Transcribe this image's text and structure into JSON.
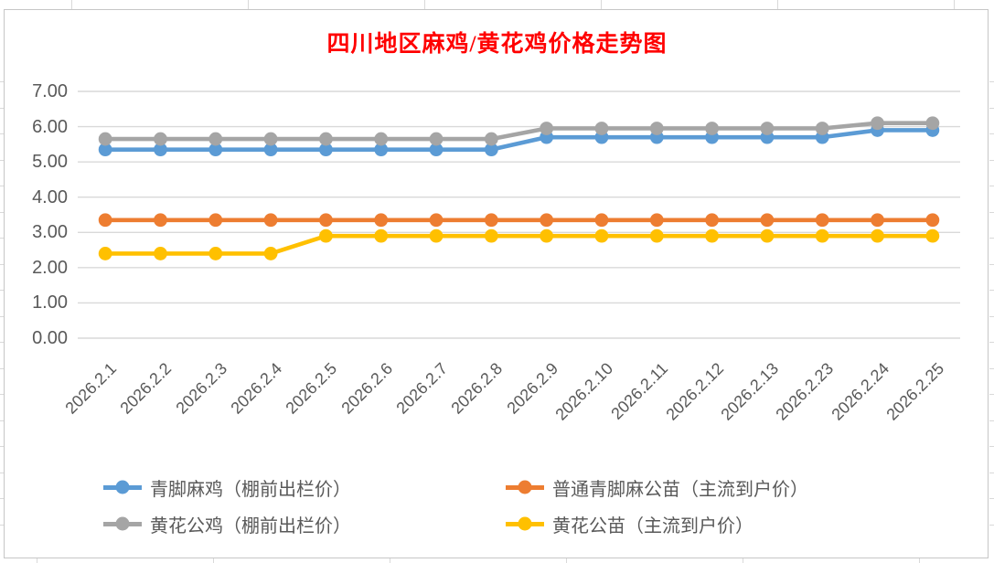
{
  "chart_data": {
    "type": "line",
    "title": "四川地区麻鸡/黄花鸡价格走势图",
    "title_color": "#FF0000",
    "categories": [
      "2026.2.1",
      "2026.2.2",
      "2026.2.3",
      "2026.2.4",
      "2026.2.5",
      "2026.2.6",
      "2026.2.7",
      "2026.2.8",
      "2026.2.9",
      "2026.2.10",
      "2026.2.11",
      "2026.2.12",
      "2026.2.13",
      "2026.2.23",
      "2026.2.24",
      "2026.2.25"
    ],
    "series": [
      {
        "name": "青脚麻鸡（棚前出栏价）",
        "color": "#5B9BD5",
        "values": [
          5.35,
          5.35,
          5.35,
          5.35,
          5.35,
          5.35,
          5.35,
          5.35,
          5.7,
          5.7,
          5.7,
          5.7,
          5.7,
          5.7,
          5.9,
          5.9
        ]
      },
      {
        "name": "普通青脚麻公苗（主流到户价）",
        "color": "#ED7D31",
        "values": [
          3.35,
          3.35,
          3.35,
          3.35,
          3.35,
          3.35,
          3.35,
          3.35,
          3.35,
          3.35,
          3.35,
          3.35,
          3.35,
          3.35,
          3.35,
          3.35
        ]
      },
      {
        "name": "黄花公鸡（棚前出栏价）",
        "color": "#A5A5A5",
        "values": [
          5.65,
          5.65,
          5.65,
          5.65,
          5.65,
          5.65,
          5.65,
          5.65,
          5.95,
          5.95,
          5.95,
          5.95,
          5.95,
          5.95,
          6.1,
          6.1
        ]
      },
      {
        "name": "黄花公苗（主流到户价）",
        "color": "#FFC000",
        "values": [
          2.4,
          2.4,
          2.4,
          2.4,
          2.9,
          2.9,
          2.9,
          2.9,
          2.9,
          2.9,
          2.9,
          2.9,
          2.9,
          2.9,
          2.9,
          2.9
        ]
      }
    ],
    "draw_order": [
      0,
      1,
      2,
      3
    ],
    "ylim": [
      0,
      7
    ],
    "ytick_labels": [
      "0.00",
      "1.00",
      "2.00",
      "3.00",
      "4.00",
      "5.00",
      "6.00",
      "7.00"
    ],
    "xlabel": "",
    "ylabel": "",
    "grid": true,
    "legend_position": "bottom",
    "legend_rows": [
      [
        0,
        1
      ],
      [
        2,
        3
      ]
    ],
    "colors": {
      "gridline": "#D9D9D9",
      "axis_text": "#595959",
      "chart_border": "#C6C6C6"
    }
  }
}
